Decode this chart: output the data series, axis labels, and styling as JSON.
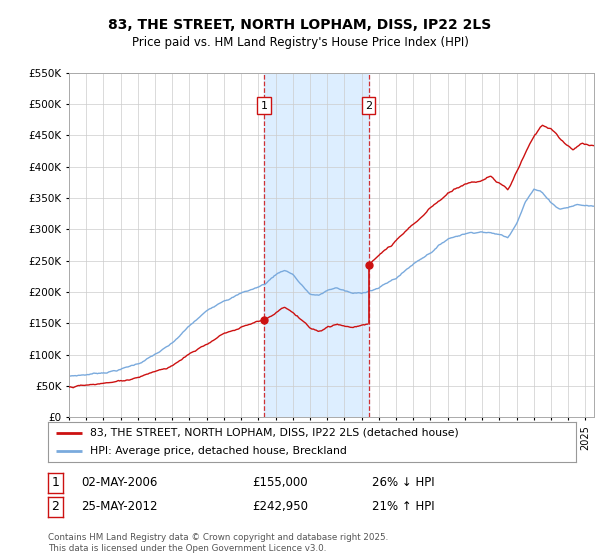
{
  "title": "83, THE STREET, NORTH LOPHAM, DISS, IP22 2LS",
  "subtitle": "Price paid vs. HM Land Registry's House Price Index (HPI)",
  "legend_line1": "83, THE STREET, NORTH LOPHAM, DISS, IP22 2LS (detached house)",
  "legend_line2": "HPI: Average price, detached house, Breckland",
  "footnote": "Contains HM Land Registry data © Crown copyright and database right 2025.\nThis data is licensed under the Open Government Licence v3.0.",
  "sale1_date": "02-MAY-2006",
  "sale1_price": 155000,
  "sale1_hpi": "26% ↓ HPI",
  "sale2_date": "25-MAY-2012",
  "sale2_price": 242950,
  "sale2_hpi": "21% ↑ HPI",
  "hpi_color": "#7aaadd",
  "property_color": "#cc1111",
  "highlight_color": "#ddeeff",
  "grid_color": "#cccccc",
  "background_color": "#ffffff",
  "ylim": [
    0,
    550000
  ],
  "yticks": [
    0,
    50000,
    100000,
    150000,
    200000,
    250000,
    300000,
    350000,
    400000,
    450000,
    500000,
    550000
  ],
  "xlim_start": 1995.0,
  "xlim_end": 2025.5
}
